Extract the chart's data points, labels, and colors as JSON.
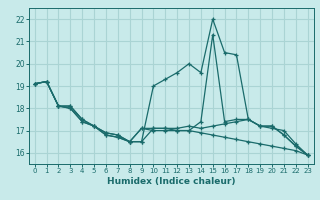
{
  "title": "",
  "xlabel": "Humidex (Indice chaleur)",
  "bg_color": "#c8eaea",
  "grid_color": "#aad4d4",
  "line_color": "#1a6b6b",
  "xlim": [
    -0.5,
    23.5
  ],
  "ylim": [
    15.5,
    22.5
  ],
  "xticks": [
    0,
    1,
    2,
    3,
    4,
    5,
    6,
    7,
    8,
    9,
    10,
    11,
    12,
    13,
    14,
    15,
    16,
    17,
    18,
    19,
    20,
    21,
    22,
    23
  ],
  "yticks": [
    16,
    17,
    18,
    19,
    20,
    21,
    22
  ],
  "lines": [
    [
      19.1,
      19.2,
      18.1,
      18.1,
      17.5,
      17.2,
      16.9,
      16.8,
      16.5,
      16.5,
      17.1,
      17.1,
      17.1,
      17.2,
      17.1,
      17.2,
      17.3,
      17.4,
      17.5,
      17.2,
      17.2,
      16.8,
      16.3,
      15.9
    ],
    [
      19.1,
      19.2,
      18.1,
      18.1,
      17.5,
      17.2,
      16.9,
      16.8,
      16.5,
      16.5,
      19.0,
      19.3,
      19.6,
      20.0,
      19.6,
      22.0,
      20.5,
      20.4,
      17.5,
      17.2,
      17.2,
      16.8,
      16.3,
      15.9
    ],
    [
      19.1,
      19.2,
      18.1,
      18.0,
      17.4,
      17.2,
      16.8,
      16.7,
      16.5,
      17.1,
      17.1,
      17.1,
      17.0,
      17.0,
      16.9,
      16.8,
      16.7,
      16.6,
      16.5,
      16.4,
      16.3,
      16.2,
      16.1,
      15.9
    ],
    [
      19.1,
      19.2,
      18.1,
      18.0,
      17.4,
      17.2,
      16.8,
      16.7,
      16.5,
      17.1,
      17.0,
      17.0,
      17.0,
      17.0,
      17.4,
      21.3,
      17.4,
      17.5,
      17.5,
      17.2,
      17.1,
      17.0,
      16.4,
      15.9
    ]
  ]
}
